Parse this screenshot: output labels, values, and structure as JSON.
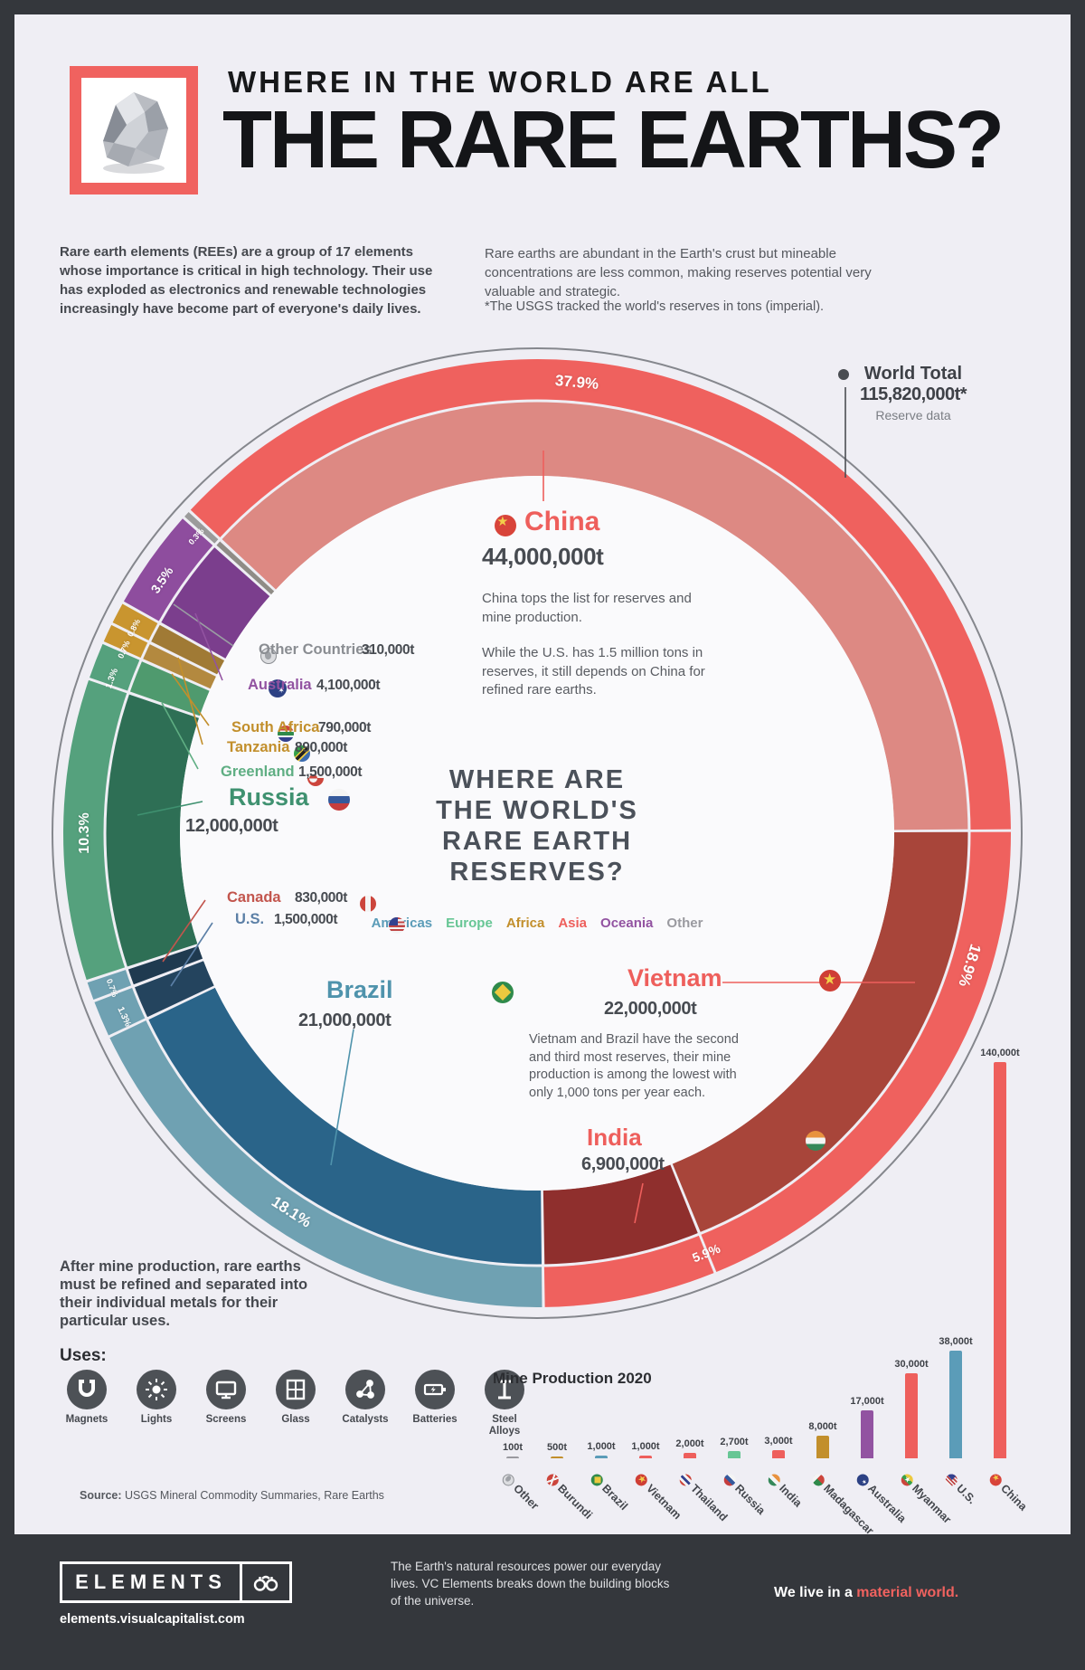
{
  "title": {
    "kicker": "WHERE IN THE WORLD ARE ALL",
    "main": "THE RARE EARTHS?"
  },
  "intro": {
    "left": "Rare earth elements (REEs) are a group of 17 elements whose importance is critical in high technology. Their use has exploded as electronics and renewable technologies increasingly have become part of everyone's daily lives.",
    "right": "Rare earths are abundant in the Earth's crust but mineable concentrations are less common, making reserves potential very valuable and strategic.",
    "note": "*The USGS tracked the world's reserves in tons (imperial)."
  },
  "world_total": {
    "label": "World Total",
    "value": "115,820,000t*",
    "sublabel": "Reserve data"
  },
  "center": {
    "headline_lines": [
      "WHERE ARE",
      "THE WORLD'S",
      "RARE EARTH",
      "RESERVES?"
    ],
    "legend": [
      {
        "label": "Americas",
        "color": "#5b9cb8"
      },
      {
        "label": "Europe",
        "color": "#67c695"
      },
      {
        "label": "Africa",
        "color": "#c28f2c"
      },
      {
        "label": "Asia",
        "color": "#ee5f5c"
      },
      {
        "label": "Oceania",
        "color": "#9253a1"
      },
      {
        "label": "Other",
        "color": "#9a9aa0"
      }
    ]
  },
  "callouts": {
    "china": {
      "name": "China",
      "value": "44,000,000t",
      "desc1": "China tops the list for reserves and mine production.",
      "desc2": "While the U.S. has 1.5 million tons in reserves, it still depends on China for refined rare earths."
    },
    "other": {
      "name": "Other Countries",
      "value": "310,000t"
    },
    "australia": {
      "name": "Australia",
      "value": "4,100,000t"
    },
    "south_africa": {
      "name": "South Africa",
      "value": "790,000t"
    },
    "tanzania": {
      "name": "Tanzania",
      "value": "890,000t"
    },
    "greenland": {
      "name": "Greenland",
      "value": "1,500,000t"
    },
    "russia": {
      "name": "Russia",
      "value": "12,000,000t"
    },
    "canada": {
      "name": "Canada",
      "value": "830,000t"
    },
    "us": {
      "name": "U.S.",
      "value": "1,500,000t"
    },
    "brazil": {
      "name": "Brazil",
      "value": "21,000,000t"
    },
    "vietnam": {
      "name": "Vietnam",
      "value": "22,000,000t",
      "desc": "Vietnam and Brazil have the second and third most reserves, their mine production is among the lowest with only 1,000 tons per year each."
    },
    "india": {
      "name": "India",
      "value": "6,900,000t"
    }
  },
  "after_text": "After mine production, rare earths must be refined and separated into their individual metals for their particular uses.",
  "uses": {
    "heading": "Uses:",
    "items": [
      "Magnets",
      "Lights",
      "Screens",
      "Glass",
      "Catalysts",
      "Batteries",
      "Steel Alloys"
    ]
  },
  "source": {
    "prefix": "Source:",
    "text": " USGS Mineral Commodity Summaries, Rare Earths"
  },
  "footer": {
    "brand": "ELEMENTS",
    "url": "elements.visualcapitalist.com",
    "tagline": "The Earth's natural resources power our everyday lives. VC Elements breaks down the building blocks of the universe.",
    "motto_plain": "We live in a ",
    "motto_accent": "material world."
  },
  "chart_data": [
    {
      "type": "pie",
      "subtype": "donut",
      "title": "Where are the world's rare earth reserves?",
      "unit": "imperial tons",
      "total_tons": 115820000,
      "total_label": "115,820,000t*",
      "start_angle": -47,
      "legend_position": "center",
      "slices": [
        {
          "key": "china",
          "country": "China",
          "tons": 44000000,
          "tons_label": "44,000,000t",
          "pct": 37.9,
          "pct_label": "37.9%",
          "flat_color": "#ef615e",
          "texture_color": "#dd8983",
          "label_angle": 5,
          "label_size": 17
        },
        {
          "key": "vietnam",
          "country": "Vietnam",
          "tons": 22000000,
          "tons_label": "22,000,000t",
          "pct": 18.9,
          "pct_label": "18.9%",
          "flat_color": "#ef615e",
          "texture_color": "#a8453a",
          "label_angle": 107,
          "label_size": 17
        },
        {
          "key": "india",
          "country": "India",
          "tons": 6900000,
          "tons_label": "6,900,000t",
          "pct": 5.9,
          "pct_label": "5.9%",
          "flat_color": "#ef615e",
          "texture_color": "#8f2f2d",
          "label_angle": 158,
          "label_size": 14
        },
        {
          "key": "brazil",
          "country": "Brazil",
          "tons": 21000000,
          "tons_label": "21,000,000t",
          "pct": 18.1,
          "pct_label": "18.1%",
          "flat_color": "#6fa1b2",
          "texture_color": "#2a6489",
          "label_angle": 213,
          "label_size": 17
        },
        {
          "key": "us",
          "country": "U.S.",
          "tons": 1500000,
          "tons_label": "1,500,000t",
          "pct": 1.3,
          "pct_label": "1.3%",
          "flat_color": "#6fa1b2",
          "texture_color": "#24445e",
          "label_angle": 246,
          "label_size": 10
        },
        {
          "key": "canada",
          "country": "Canada",
          "tons": 830000,
          "tons_label": "830,000t",
          "pct": 0.7,
          "pct_label": "0.7%",
          "flat_color": "#6fa1b2",
          "texture_color": "#1f3a50",
          "label_angle": 250,
          "label_size": 9
        },
        {
          "key": "russia",
          "country": "Russia",
          "tons": 12000000,
          "tons_label": "12,000,000t",
          "pct": 10.3,
          "pct_label": "10.3%",
          "flat_color": "#55a17d",
          "texture_color": "#2e6f55",
          "label_angle": 270,
          "label_size": 16
        },
        {
          "key": "greenland",
          "country": "Greenland",
          "tons": 1500000,
          "tons_label": "1,500,000t",
          "pct": 1.3,
          "pct_label": "1.3%",
          "flat_color": "#55a17d",
          "texture_color": "#4f9a6e",
          "label_angle": 290,
          "label_size": 10
        },
        {
          "key": "south_africa",
          "country": "South Africa",
          "tons": 790000,
          "tons_label": "790,000t",
          "pct": 0.7,
          "pct_label": "0.7%",
          "flat_color": "#c9952f",
          "texture_color": "#b3893f",
          "label_angle": 294,
          "label_size": 9
        },
        {
          "key": "tanzania",
          "country": "Tanzania",
          "tons": 890000,
          "tons_label": "890,000t",
          "pct": 0.8,
          "pct_label": "0.8%",
          "flat_color": "#c9952f",
          "texture_color": "#a07a35",
          "label_angle": 297,
          "label_size": 9
        },
        {
          "key": "australia",
          "country": "Australia",
          "tons": 4100000,
          "tons_label": "4,100,000t",
          "pct": 3.5,
          "pct_label": "3.5%",
          "flat_color": "#8e4d9e",
          "texture_color": "#7b3e8d",
          "label_angle": 304,
          "label_size": 14
        },
        {
          "key": "other",
          "country": "Other Countries",
          "tons": 310000,
          "tons_label": "310,000t",
          "pct": 0.3,
          "pct_label": "0.3%",
          "flat_color": "#9b9b9b",
          "texture_color": "#8f8c86",
          "label_angle": 311,
          "label_size": 9
        }
      ]
    },
    {
      "type": "bar",
      "title": "Mine Production 2020",
      "ylim": [
        0,
        140000
      ],
      "grid": false,
      "categories": [
        "Other",
        "Burundi",
        "Brazil",
        "Vietnam",
        "Thailand",
        "Russia",
        "India",
        "Madagascar",
        "Australia",
        "Myanmar",
        "U.S.",
        "China"
      ],
      "keys": [
        "other",
        "burundi",
        "brazil",
        "vietnam",
        "thailand",
        "russia",
        "india",
        "madagascar",
        "australia",
        "myanmar",
        "us",
        "china"
      ],
      "values": [
        100,
        500,
        1000,
        1000,
        2000,
        2700,
        3000,
        8000,
        17000,
        30000,
        38000,
        140000
      ],
      "value_labels": [
        "100t",
        "500t",
        "1,000t",
        "1,000t",
        "2,000t",
        "2,700t",
        "3,000t",
        "8,000t",
        "17,000t",
        "30,000t",
        "38,000t",
        "140,000t"
      ],
      "colors": [
        "#9a9aa0",
        "#c28f2c",
        "#5b9cb8",
        "#ee5f5c",
        "#ee5f5c",
        "#67c695",
        "#ee5f5c",
        "#c28f2c",
        "#9253a1",
        "#ee5f5c",
        "#5b9cb8",
        "#ee5f5c"
      ]
    }
  ]
}
